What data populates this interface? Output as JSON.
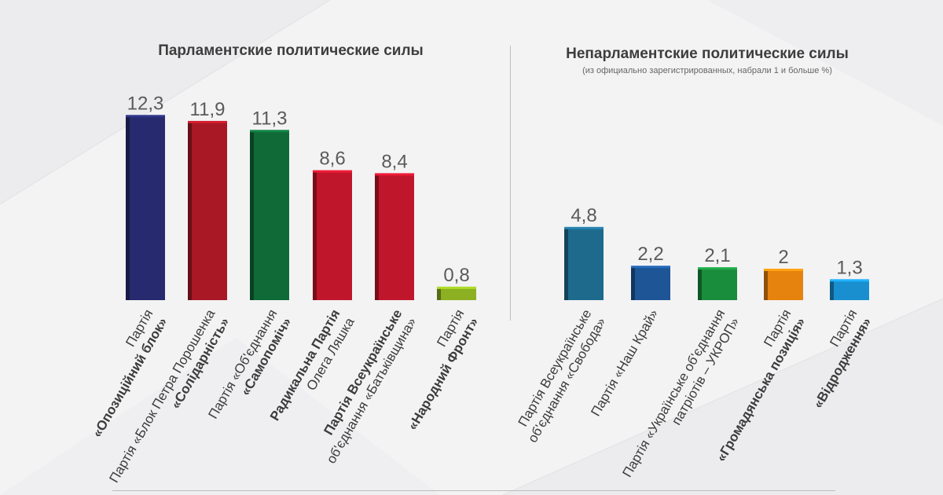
{
  "chart_data": [
    {
      "type": "bar",
      "title": "Парламентские политические силы",
      "values": [
        12.3,
        11.9,
        11.3,
        8.6,
        8.4,
        0.8
      ],
      "value_labels": [
        "12,3",
        "11,9",
        "11,3",
        "8,6",
        "8,4",
        "0,8"
      ],
      "colors": [
        "#282a6f",
        "#a81825",
        "#0f6a37",
        "#c0162c",
        "#c0162c",
        "#8cb021"
      ],
      "categories": [
        {
          "line1": "Партія",
          "line2": "«Опозиційний блок»",
          "bold": 2
        },
        {
          "line1": "Партія «Блок Петра Порошенка",
          "line2": "«Солідарність»",
          "bold": 2
        },
        {
          "line1": "Партія «Об'єднання",
          "line2": "«Самопоміч»",
          "bold": 2
        },
        {
          "line1": "Радикальна Партія",
          "line2": "Олега Ляшка",
          "bold": 1
        },
        {
          "line1": "Партія Всеукраїнське",
          "line2": "об'єднання «Батьківщина»",
          "bold": 1
        },
        {
          "line1": "Партія",
          "line2": "«Народний Фронт»",
          "bold": 2
        }
      ]
    },
    {
      "type": "bar",
      "title": "Непарламентские политические силы",
      "subtitle": "(из официально зарегистрированных, набрали 1 и больше %)",
      "values": [
        4.8,
        2.2,
        2.1,
        2,
        1.3
      ],
      "value_labels": [
        "4,8",
        "2,2",
        "2,1",
        "2",
        "1,3"
      ],
      "colors": [
        "#1e6a8d",
        "#1e5596",
        "#1a8d3c",
        "#e6820e",
        "#1a8fd0"
      ],
      "categories": [
        {
          "line1": "Партія Всеукраїнське",
          "line2": "об'єднання «Свобода»"
        },
        {
          "line1": "Партія «Наш Край»"
        },
        {
          "line1": "Партія «Українське об'єднання",
          "line2": "патріотів – УКРОП»"
        },
        {
          "line1": "Партія",
          "line2": "«Громадянська позиція»",
          "bold": 2
        },
        {
          "line1": "Партія",
          "line2": "«Відродження»",
          "bold": 2
        }
      ]
    }
  ]
}
